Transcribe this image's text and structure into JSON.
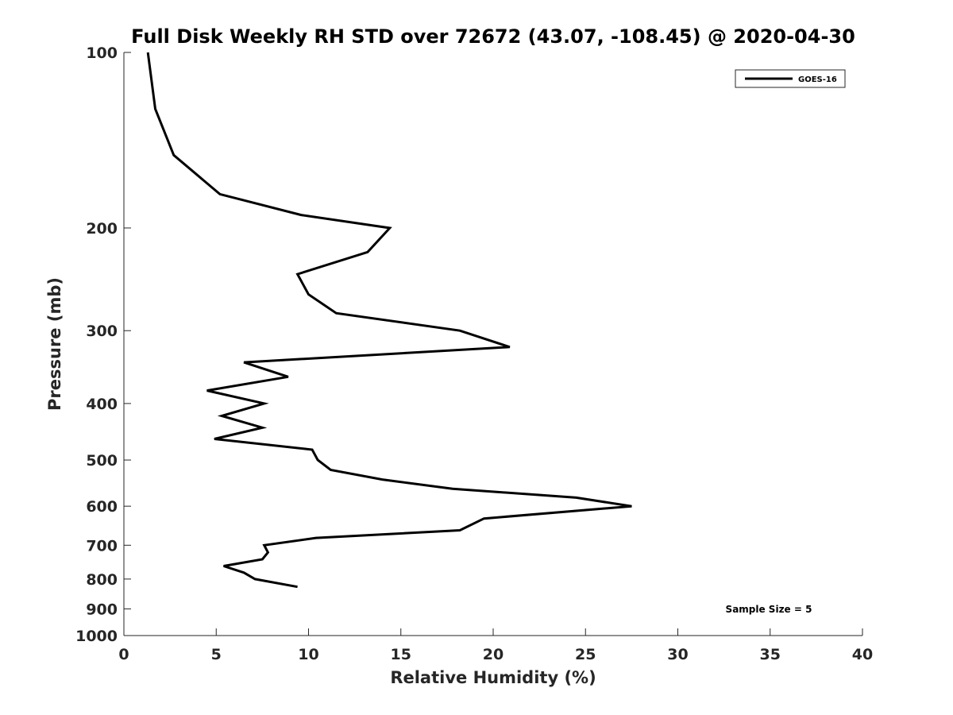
{
  "chart_data": {
    "type": "line",
    "title": "Full Disk Weekly RH STD over 72672 (43.07, -108.45) @ 2020-04-30",
    "xlabel": "Relative Humidity (%)",
    "ylabel": "Pressure (mb)",
    "xlim": [
      0,
      40
    ],
    "ylim": [
      100,
      1000
    ],
    "y_scale": "log",
    "y_reversed": true,
    "x_ticks": [
      "0",
      "5",
      "10",
      "15",
      "20",
      "25",
      "30",
      "35",
      "40"
    ],
    "y_ticks": [
      "100",
      "200",
      "300",
      "400",
      "500",
      "600",
      "700",
      "800",
      "900",
      "1000"
    ],
    "grid": false,
    "legend_position": "top-right",
    "annotation": "Sample Size = 5",
    "series": [
      {
        "name": "GOES-16",
        "color": "#000000",
        "points": [
          {
            "x": 1.3,
            "p": 100
          },
          {
            "x": 1.7,
            "p": 125
          },
          {
            "x": 2.7,
            "p": 150
          },
          {
            "x": 5.2,
            "p": 175
          },
          {
            "x": 9.6,
            "p": 190
          },
          {
            "x": 14.4,
            "p": 200
          },
          {
            "x": 13.2,
            "p": 220
          },
          {
            "x": 9.4,
            "p": 240
          },
          {
            "x": 10.0,
            "p": 260
          },
          {
            "x": 11.5,
            "p": 280
          },
          {
            "x": 18.2,
            "p": 300
          },
          {
            "x": 20.9,
            "p": 320
          },
          {
            "x": 6.5,
            "p": 340
          },
          {
            "x": 8.9,
            "p": 360
          },
          {
            "x": 4.5,
            "p": 380
          },
          {
            "x": 7.6,
            "p": 400
          },
          {
            "x": 5.3,
            "p": 420
          },
          {
            "x": 7.5,
            "p": 440
          },
          {
            "x": 4.9,
            "p": 460
          },
          {
            "x": 10.2,
            "p": 480
          },
          {
            "x": 10.5,
            "p": 500
          },
          {
            "x": 11.2,
            "p": 520
          },
          {
            "x": 14.0,
            "p": 540
          },
          {
            "x": 17.8,
            "p": 560
          },
          {
            "x": 24.5,
            "p": 580
          },
          {
            "x": 27.5,
            "p": 600
          },
          {
            "x": 19.5,
            "p": 630
          },
          {
            "x": 18.2,
            "p": 660
          },
          {
            "x": 10.4,
            "p": 680
          },
          {
            "x": 7.6,
            "p": 700
          },
          {
            "x": 7.8,
            "p": 720
          },
          {
            "x": 7.5,
            "p": 740
          },
          {
            "x": 5.4,
            "p": 760
          },
          {
            "x": 6.5,
            "p": 780
          },
          {
            "x": 7.1,
            "p": 800
          },
          {
            "x": 9.4,
            "p": 825
          }
        ]
      }
    ]
  }
}
